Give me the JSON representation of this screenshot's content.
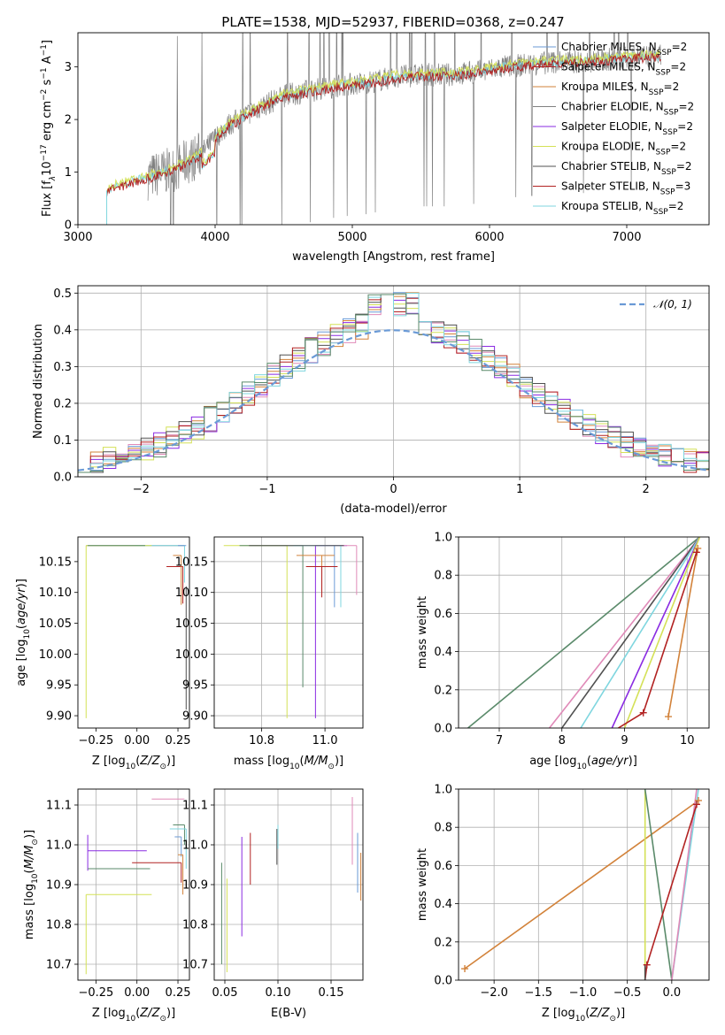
{
  "title": "PLATE=1538, MJD=52937, FIBERID=0368, z=0.247",
  "colors": {
    "blue": "#6a9ad6",
    "red": "#b22222",
    "orange": "#d2823a",
    "grey": "#808080",
    "purple": "#8a2be2",
    "yellow": "#d4e157",
    "dark": "#505050",
    "cyan": "#7fd6df",
    "pink": "#e08ab8",
    "green": "#5a8a6a"
  },
  "chart_data": [
    {
      "id": "spectrum",
      "type": "line",
      "xlabel": "wavelength [Angstrom, rest frame]",
      "ylabel": "Flux [f",
      "xlim": [
        3000,
        7600
      ],
      "ylim": [
        0,
        3.65
      ],
      "xticks": [
        3000,
        4000,
        5000,
        6000,
        7000
      ],
      "yticks": [
        0,
        1,
        2,
        3
      ],
      "x": [
        3210,
        3300,
        3500,
        3700,
        3900,
        4000,
        4100,
        4300,
        4500,
        4700,
        4900,
        5100,
        5300,
        5500,
        5700,
        5900,
        6100,
        6300,
        6500,
        6700,
        6900,
        7100,
        7250
      ],
      "y": [
        0.65,
        0.75,
        0.9,
        1.05,
        1.35,
        1.65,
        1.9,
        2.2,
        2.45,
        2.55,
        2.65,
        2.7,
        2.8,
        2.85,
        2.85,
        2.9,
        3.0,
        3.05,
        3.1,
        3.1,
        3.15,
        3.2,
        3.2
      ],
      "legend": [
        {
          "pre": "Chabrier MILES, N",
          "sub": "SSP",
          "post": "=2",
          "color": "blue"
        },
        {
          "pre": "Salpeter MILES, N",
          "sub": "SSP",
          "post": "=2",
          "color": "red"
        },
        {
          "pre": "Kroupa MILES, N",
          "sub": "SSP",
          "post": "=2",
          "color": "orange"
        },
        {
          "pre": "Chabrier ELODIE, N",
          "sub": "SSP",
          "post": "=2",
          "color": "grey"
        },
        {
          "pre": "Salpeter ELODIE, N",
          "sub": "SSP",
          "post": "=2",
          "color": "purple"
        },
        {
          "pre": "Kroupa ELODIE, N",
          "sub": "SSP",
          "post": "=2",
          "color": "yellow"
        },
        {
          "pre": "Chabrier STELIB, N",
          "sub": "SSP",
          "post": "=2",
          "color": "dark"
        },
        {
          "pre": "Salpeter STELIB, N",
          "sub": "SSP",
          "post": "=3",
          "color": "red"
        },
        {
          "pre": "Kroupa STELIB, N",
          "sub": "SSP",
          "post": "=2",
          "color": "cyan"
        }
      ]
    },
    {
      "id": "residuals",
      "type": "line",
      "xlabel": "(data-model)/error",
      "ylabel": "Normed distribution",
      "xlim": [
        -2.5,
        2.5
      ],
      "ylim": [
        0,
        0.52
      ],
      "xticks": [
        -2,
        -1,
        0,
        1,
        2
      ],
      "yticks": [
        0.0,
        0.1,
        0.2,
        0.3,
        0.4,
        0.5
      ],
      "grid": true,
      "legend": [
        {
          "label": "𝒩(0, 1)",
          "color": "blue"
        }
      ],
      "bins": [
        -2.5,
        -2.4,
        -2.3,
        -2.2,
        -2.1,
        -2.0,
        -1.9,
        -1.8,
        -1.7,
        -1.6,
        -1.5,
        -1.4,
        -1.3,
        -1.2,
        -1.1,
        -1.0,
        -0.9,
        -0.8,
        -0.7,
        -0.6,
        -0.5,
        -0.4,
        -0.3,
        -0.2,
        -0.1,
        0.0,
        0.1,
        0.2,
        0.3,
        0.4,
        0.5,
        0.6,
        0.7,
        0.8,
        0.9,
        1.0,
        1.1,
        1.2,
        1.3,
        1.4,
        1.5,
        1.6,
        1.7,
        1.8,
        1.9,
        2.0,
        2.1,
        2.2,
        2.3,
        2.4
      ]
    },
    {
      "id": "age_vs_Z",
      "type": "scatter",
      "xlabel": "Z [log",
      "ylabel": "age  [log",
      "xlim": [
        -0.36,
        0.32
      ],
      "ylim": [
        9.88,
        10.19
      ],
      "xticks": [
        -0.25,
        0.0,
        0.25
      ],
      "yticks": [
        9.9,
        9.95,
        10.0,
        10.05,
        10.1,
        10.15
      ],
      "ytick_labels": [
        "9.90",
        "9.95",
        "10.00",
        "10.05",
        "10.10",
        "10.15"
      ],
      "xtick_labels": [
        "−0.25",
        "0.00",
        "0.25"
      ]
    },
    {
      "id": "age_vs_mass",
      "type": "scatter",
      "xlabel": "mass [log",
      "xlim": [
        10.65,
        11.12
      ],
      "ylim": [
        9.88,
        10.19
      ],
      "xticks": [
        10.8,
        11.0
      ],
      "yticks": [
        9.9,
        9.95,
        10.0,
        10.05,
        10.1,
        10.15
      ],
      "ytick_labels": [
        "9.90",
        "9.95",
        "10.00",
        "10.05",
        "10.10",
        "10.15"
      ],
      "xtick_labels": [
        "10.8",
        "11.0"
      ],
      "grid": true
    },
    {
      "id": "weight_vs_age",
      "type": "line",
      "xlabel": "age  [log",
      "ylabel": "mass weight",
      "xlim": [
        6.35,
        10.35
      ],
      "ylim": [
        0,
        1.0
      ],
      "xticks": [
        7,
        8,
        9,
        10
      ],
      "yticks": [
        0.0,
        0.2,
        0.4,
        0.6,
        0.8,
        1.0
      ],
      "grid": true
    },
    {
      "id": "mass_vs_Z",
      "type": "scatter",
      "xlabel": "Z [log",
      "ylabel": "mass [log",
      "xlim": [
        -0.36,
        0.32
      ],
      "ylim": [
        10.66,
        11.14
      ],
      "xticks": [
        -0.25,
        0.0,
        0.25
      ],
      "yticks": [
        10.7,
        10.8,
        10.9,
        11.0,
        11.1
      ],
      "xtick_labels": [
        "−0.25",
        "0.00",
        "0.25"
      ],
      "grid": true
    },
    {
      "id": "mass_vs_ebv",
      "type": "scatter",
      "xlabel": "E(B-V)",
      "xlim": [
        0.04,
        0.18
      ],
      "ylim": [
        10.66,
        11.14
      ],
      "xticks": [
        0.05,
        0.1,
        0.15
      ],
      "yticks": [
        10.7,
        10.8,
        10.9,
        11.0,
        11.1
      ],
      "xtick_labels": [
        "0.05",
        "0.10",
        "0.15"
      ],
      "grid": true
    },
    {
      "id": "weight_vs_Z",
      "type": "line",
      "xlabel": "Z [log",
      "ylabel": "mass weight",
      "xlim": [
        -2.4,
        0.42
      ],
      "ylim": [
        0,
        1.0
      ],
      "xticks": [
        -2.0,
        -1.5,
        -1.0,
        -0.5,
        0.0
      ],
      "xtick_labels": [
        "−2.0",
        "−1.5",
        "−1.0",
        "−0.5",
        "0.0"
      ],
      "yticks": [
        0.0,
        0.2,
        0.4,
        0.6,
        0.8,
        1.0
      ],
      "grid": true
    }
  ]
}
